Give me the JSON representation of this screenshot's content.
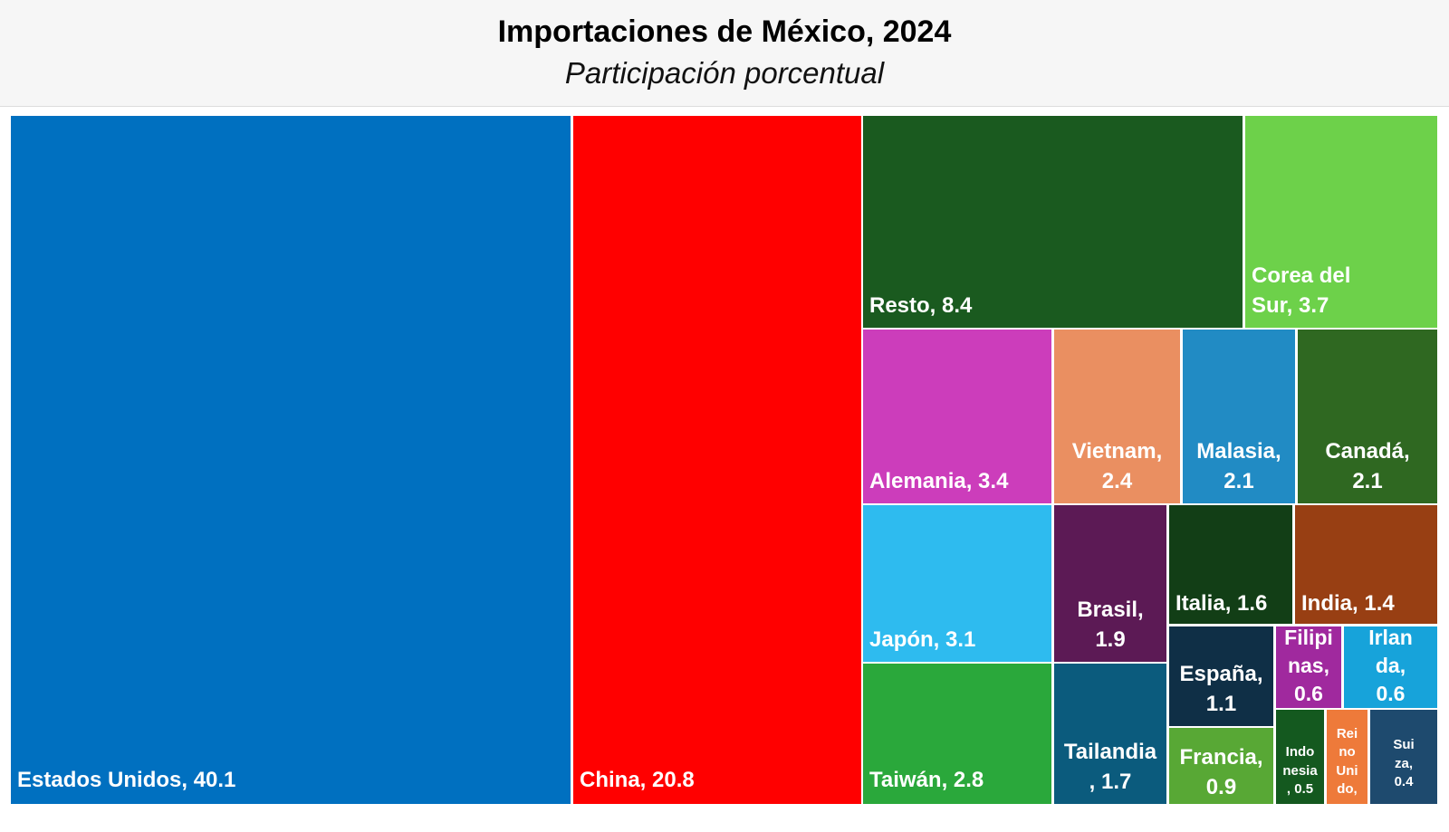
{
  "header": {
    "title": "Importaciones de México, 2024",
    "subtitle": "Participación porcentual"
  },
  "chart_data": {
    "type": "treemap",
    "title": "Importaciones de México, 2024",
    "subtitle": "Participación porcentual",
    "items": [
      {
        "name": "Estados Unidos",
        "value": 40.1,
        "color": "#0070C0",
        "label": "Estados Unidos, 40.1"
      },
      {
        "name": "China",
        "value": 20.8,
        "color": "#FF0000",
        "label": "China, 20.8"
      },
      {
        "name": "Resto",
        "value": 8.4,
        "color": "#1A5A1F",
        "label": "Resto, 8.4"
      },
      {
        "name": "Corea del Sur",
        "value": 3.7,
        "color": "#6DD14A",
        "label": "Corea del\nSur, 3.7"
      },
      {
        "name": "Alemania",
        "value": 3.4,
        "color": "#CC3DBB",
        "label": "Alemania, 3.4"
      },
      {
        "name": "Vietnam",
        "value": 2.4,
        "color": "#EA8F61",
        "label": "Vietnam,\n2.4"
      },
      {
        "name": "Malasia",
        "value": 2.1,
        "color": "#218BC4",
        "label": "Malasia,\n2.1"
      },
      {
        "name": "Canadá",
        "value": 2.1,
        "color": "#2F6821",
        "label": "Canadá,\n2.1"
      },
      {
        "name": "Japón",
        "value": 3.1,
        "color": "#2EBBEF",
        "label": "Japón, 3.1"
      },
      {
        "name": "Brasil",
        "value": 1.9,
        "color": "#5C1A55",
        "label": "Brasil,\n1.9"
      },
      {
        "name": "Italia",
        "value": 1.6,
        "color": "#123E16",
        "label": "Italia, 1.6"
      },
      {
        "name": "India",
        "value": 1.4,
        "color": "#983F13",
        "label": "India, 1.4"
      },
      {
        "name": "Taiwán",
        "value": 2.8,
        "color": "#2AA83B",
        "label": "Taiwán, 2.8"
      },
      {
        "name": "Tailandia",
        "value": 1.7,
        "color": "#0B5B7D",
        "label": "Tailandia\n, 1.7"
      },
      {
        "name": "España",
        "value": 1.1,
        "color": "#0F2F46",
        "label": "España,\n1.1"
      },
      {
        "name": "Francia",
        "value": 0.9,
        "color": "#58A835",
        "label": "Francia,\n0.9"
      },
      {
        "name": "Filipinas",
        "value": 0.6,
        "color": "#A0299E",
        "label": "Filipi\nnas,\n0.6"
      },
      {
        "name": "Irlanda",
        "value": 0.6,
        "color": "#17A3DA",
        "label": "Irlan\nda,\n0.6"
      },
      {
        "name": "Indonesia",
        "value": 0.5,
        "color": "#14591F",
        "label": "Indo\nnesia\n, 0.5"
      },
      {
        "name": "Reino Unido",
        "value": 0.4,
        "color": "#EE7A3A",
        "label": "Rei\nno\nUni\ndo,"
      },
      {
        "name": "Suiza",
        "value": 0.4,
        "color": "#1E4A6E",
        "label": "Sui\nza,\n0.4"
      }
    ]
  }
}
